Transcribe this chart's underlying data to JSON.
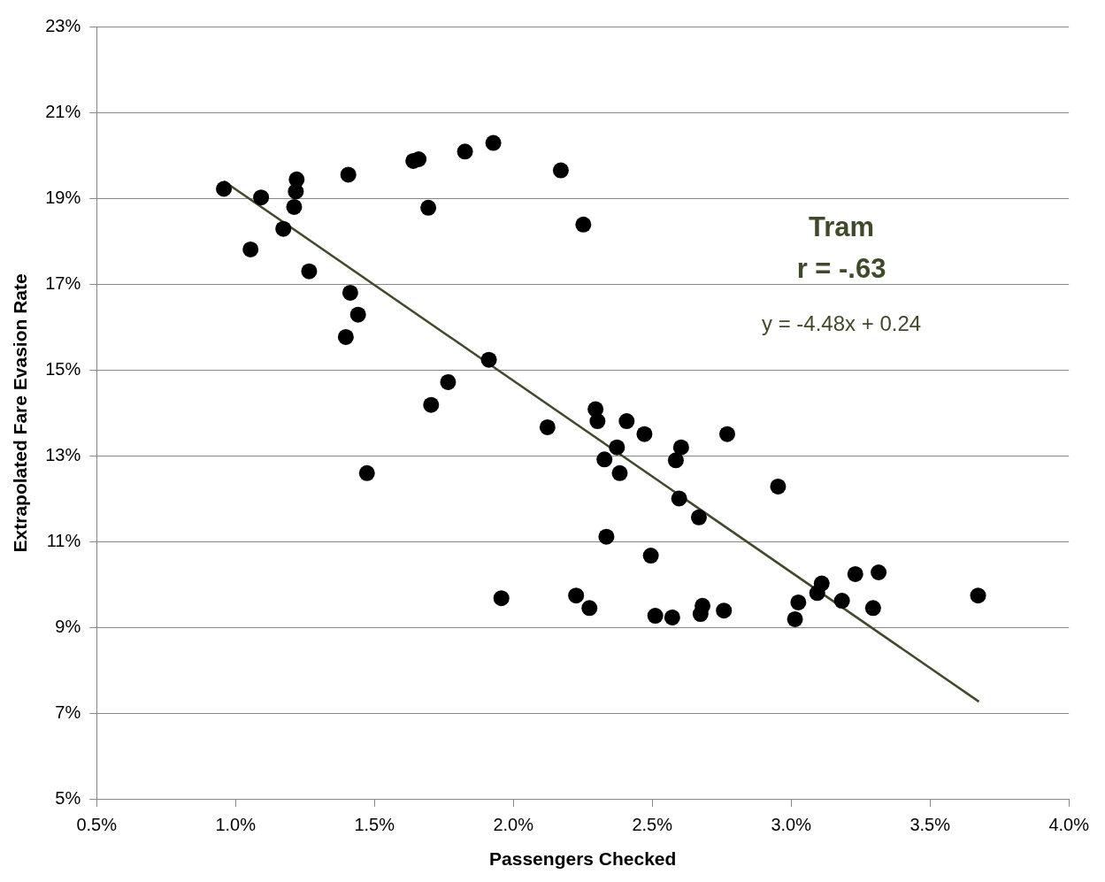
{
  "chart_data": {
    "type": "scatter",
    "xlabel": "Passengers Checked",
    "ylabel": "Extrapolated Fare Evasion Rate",
    "annotations": [
      "Tram",
      "r = -.63",
      "y = -4.48x + 0.24"
    ],
    "series": [
      {
        "type": "scatter",
        "color": "#000000",
        "marker": "circle",
        "x": [
          0.958,
          1.054,
          1.092,
          1.172,
          1.211,
          1.217,
          1.22,
          1.265,
          1.406,
          1.413,
          1.441,
          1.397,
          1.473,
          1.64,
          1.659,
          1.694,
          1.704,
          1.765,
          1.826,
          1.928,
          1.912,
          1.957,
          2.123,
          2.171,
          2.252,
          2.226,
          2.274,
          2.296,
          2.303,
          2.328,
          2.335,
          2.373,
          2.383,
          2.408,
          2.472,
          2.495,
          2.511,
          2.572,
          2.585,
          2.604,
          2.597,
          2.668,
          2.674,
          2.681,
          2.758,
          2.77,
          2.953,
          3.014,
          3.026,
          3.094,
          3.11,
          3.183,
          3.231,
          3.295,
          3.315,
          3.673
        ],
        "values": [
          19.22,
          17.81,
          19.02,
          18.29,
          18.8,
          19.16,
          19.44,
          17.3,
          19.55,
          16.8,
          16.29,
          15.77,
          12.6,
          19.87,
          19.91,
          18.78,
          14.19,
          14.72,
          20.09,
          20.29,
          15.24,
          9.69,
          13.67,
          19.65,
          18.39,
          9.75,
          9.46,
          14.09,
          13.81,
          12.92,
          11.12,
          13.2,
          12.6,
          13.81,
          13.51,
          10.68,
          9.28,
          9.24,
          12.9,
          13.2,
          12.01,
          11.57,
          9.32,
          9.51,
          9.4,
          13.51,
          12.29,
          9.2,
          9.59,
          9.81,
          10.03,
          9.63,
          10.25,
          9.46,
          10.29,
          9.75
        ]
      },
      {
        "type": "line",
        "color": "#3f4a2a",
        "marker": "none",
        "line_style": "solid",
        "x": [
          0.958,
          3.676
        ],
        "values": [
          19.4,
          7.28
        ]
      }
    ],
    "xlim": [
      0.5,
      4.0
    ],
    "xticks": [
      {
        "value": 0.5,
        "label": "0.5%"
      },
      {
        "value": 1.0,
        "label": "1.0%"
      },
      {
        "value": 1.5,
        "label": "1.5%"
      },
      {
        "value": 2.0,
        "label": "2.0%"
      },
      {
        "value": 2.5,
        "label": "2.5%"
      },
      {
        "value": 3.0,
        "label": "3.0%"
      },
      {
        "value": 3.5,
        "label": "3.5%"
      },
      {
        "value": 4.0,
        "label": "4.0%"
      }
    ],
    "ylim": [
      5,
      23
    ],
    "yticks": [
      {
        "value": 5,
        "label": "5%"
      },
      {
        "value": 7,
        "label": "7%"
      },
      {
        "value": 9,
        "label": "9%"
      },
      {
        "value": 11,
        "label": "11%"
      },
      {
        "value": 13,
        "label": "13%"
      },
      {
        "value": 15,
        "label": "15%"
      },
      {
        "value": 17,
        "label": "17%"
      },
      {
        "value": 19,
        "label": "19%"
      },
      {
        "value": 21,
        "label": "21%"
      },
      {
        "value": 23,
        "label": "23%"
      }
    ],
    "grid": "y",
    "legend": false
  }
}
